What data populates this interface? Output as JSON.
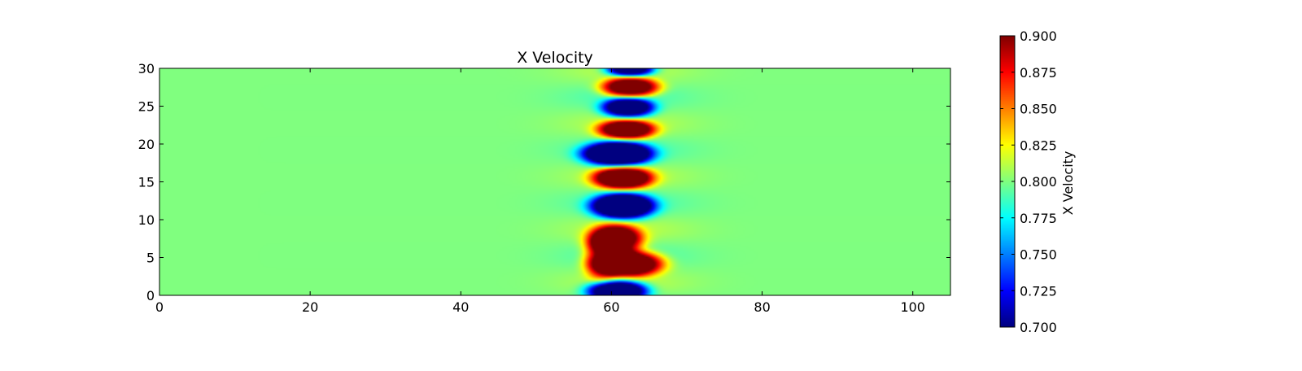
{
  "chart_data": {
    "type": "heatmap",
    "title": "X Velocity",
    "xlabel": "",
    "ylabel": "",
    "xlim": [
      0,
      105
    ],
    "ylim": [
      0,
      30
    ],
    "xticks": [
      0,
      20,
      40,
      60,
      80,
      100
    ],
    "yticks": [
      0,
      5,
      10,
      15,
      20,
      25,
      30
    ],
    "xtick_labels": [
      "0",
      "20",
      "40",
      "60",
      "80",
      "100"
    ],
    "ytick_labels": [
      "0",
      "5",
      "10",
      "15",
      "20",
      "25",
      "30"
    ],
    "colormap": "jet",
    "background_value": 0.8,
    "colorbar": {
      "label": "X Velocity",
      "range": [
        0.7,
        0.9
      ],
      "ticks": [
        0.7,
        0.725,
        0.75,
        0.775,
        0.8,
        0.825,
        0.85,
        0.875,
        0.9
      ],
      "tick_labels": [
        "0.700",
        "0.725",
        "0.750",
        "0.775",
        "0.800",
        "0.825",
        "0.850",
        "0.875",
        "0.900"
      ]
    },
    "features": [
      {
        "x": 62.5,
        "y": 29.9,
        "rx": 3.2,
        "ry": 1.0,
        "delta": -0.14
      },
      {
        "x": 62.5,
        "y": 27.5,
        "rx": 3.8,
        "ry": 1.3,
        "delta": 0.14
      },
      {
        "x": 62.2,
        "y": 24.8,
        "rx": 3.5,
        "ry": 1.3,
        "delta": -0.14
      },
      {
        "x": 62.0,
        "y": 21.9,
        "rx": 3.8,
        "ry": 1.3,
        "delta": 0.14
      },
      {
        "x": 60.8,
        "y": 18.7,
        "rx": 4.6,
        "ry": 1.6,
        "delta": -0.18
      },
      {
        "x": 61.5,
        "y": 15.5,
        "rx": 4.0,
        "ry": 1.5,
        "delta": 0.15
      },
      {
        "x": 61.5,
        "y": 11.8,
        "rx": 4.2,
        "ry": 1.7,
        "delta": -0.17
      },
      {
        "x": 60.5,
        "y": 7.4,
        "rx": 3.6,
        "ry": 2.0,
        "delta": 0.14
      },
      {
        "x": 62.3,
        "y": 4.2,
        "rx": 4.5,
        "ry": 1.7,
        "delta": 0.16
      },
      {
        "x": 58.8,
        "y": 4.8,
        "rx": 2.5,
        "ry": 3.0,
        "delta": 0.07
      },
      {
        "x": 60.8,
        "y": 0.6,
        "rx": 4.0,
        "ry": 1.4,
        "delta": -0.16
      }
    ]
  }
}
